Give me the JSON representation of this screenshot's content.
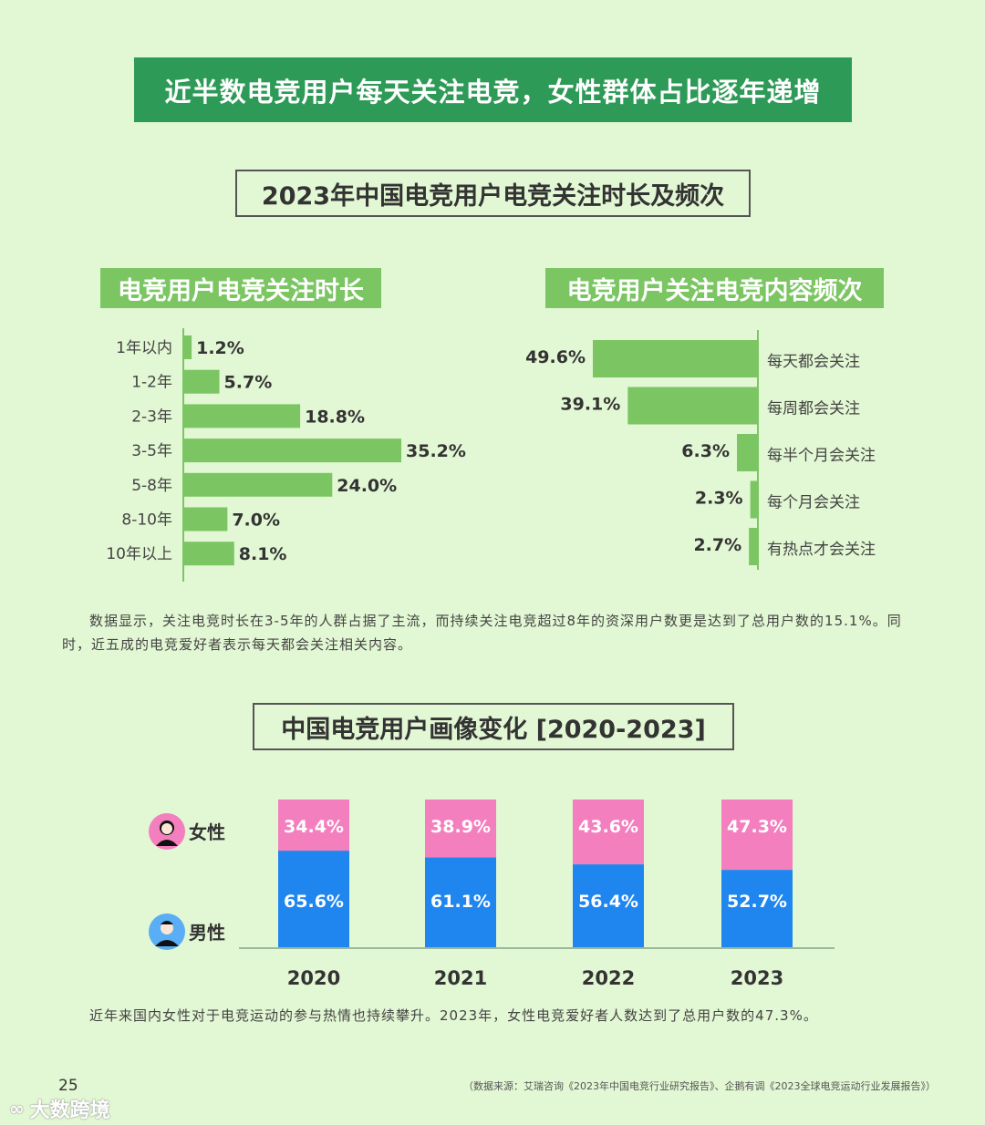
{
  "banner": {
    "title": "近半数电竞用户每天关注电竞，女性群体占比逐年递增"
  },
  "section1": {
    "title": "2023年中国电竞用户电竞关注时长及频次",
    "left_subtitle": "电竞用户电竞关注时长",
    "right_subtitle": "电竞用户关注电竞内容频次",
    "note": "数据显示，关注电竞时长在3-5年的人群占据了主流，而持续关注电竞超过8年的资深用户数更是达到了总用户数的15.1%。同时，近五成的电竞爱好者表示每天都会关注相关内容。"
  },
  "section2": {
    "title": "中国电竞用户画像变化 [2020-2023]",
    "female_label": "女性",
    "male_label": "男性",
    "note": "近年来国内女性对于电竞运动的参与热情也持续攀升。2023年，女性电竞爱好者人数达到了总用户数的47.3%。"
  },
  "footer": {
    "page_number": "25",
    "source": "（数据来源：艾瑞咨询《2023年中国电竞行业研究报告》、企鹅有调《2023全球电竞运动行业发展报告》）",
    "watermark": "大数跨境"
  },
  "colors": {
    "banner_green": "#2e9a57",
    "bar_green": "#7bc663",
    "female_pink": "#f47fbe",
    "male_blue": "#1f86f0",
    "background": "#e2f7d3"
  },
  "icons": [
    "female-avatar-icon",
    "male-avatar-icon",
    "watermark-logo-icon"
  ],
  "chart_data": [
    {
      "type": "bar",
      "orientation": "horizontal",
      "categories": [
        "1年以内",
        "1-2年",
        "2-3年",
        "3-5年",
        "5-8年",
        "8-10年",
        "10年以上"
      ],
      "values": [
        1.2,
        5.7,
        18.8,
        35.2,
        24.0,
        7.0,
        8.1
      ],
      "value_labels": [
        "1.2%",
        "5.7%",
        "18.8%",
        "35.2%",
        "24.0%",
        "7.0%",
        "8.1%"
      ],
      "unit": "%"
    },
    {
      "type": "bar",
      "orientation": "horizontal",
      "direction": "right-to-left",
      "categories": [
        "每天都会关注",
        "每周都会关注",
        "每半个月会关注",
        "每个月会关注",
        "有热点才会关注"
      ],
      "values": [
        49.6,
        39.1,
        6.3,
        2.3,
        2.7
      ],
      "value_labels": [
        "49.6%",
        "39.1%",
        "6.3%",
        "2.3%",
        "2.7%"
      ],
      "unit": "%"
    },
    {
      "type": "bar",
      "stacked": true,
      "categories": [
        "2020",
        "2021",
        "2022",
        "2023"
      ],
      "series": [
        {
          "name": "女性",
          "values": [
            34.4,
            38.9,
            43.6,
            47.3
          ],
          "labels": [
            "34.4%",
            "38.9%",
            "43.6%",
            "47.3%"
          ]
        },
        {
          "name": "男性",
          "values": [
            65.6,
            61.1,
            56.4,
            52.7
          ],
          "labels": [
            "65.6%",
            "61.1%",
            "56.4%",
            "52.7%"
          ]
        }
      ],
      "unit": "%"
    }
  ]
}
